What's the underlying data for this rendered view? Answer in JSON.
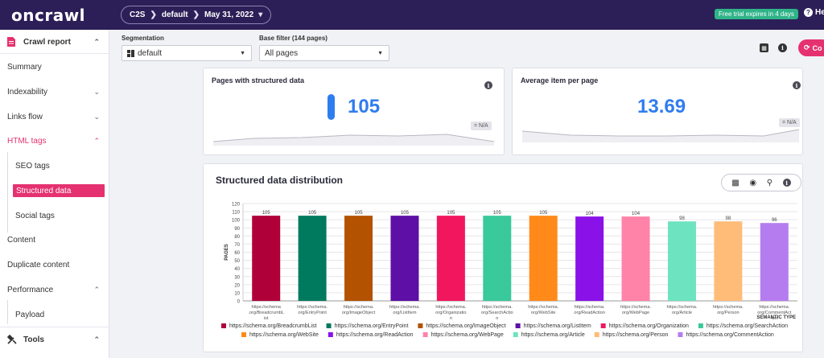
{
  "header": {
    "logo": "oncrawl",
    "breadcrumb": {
      "project": "C2S",
      "segment": "default",
      "date": "May 31, 2022"
    },
    "trial_badge": "Free trial expires in 4 days",
    "help_label": "Hel"
  },
  "sidebar": {
    "crawl_report": "Crawl report",
    "items": [
      "Summary",
      "Indexability",
      "Links flow",
      "HTML tags"
    ],
    "html_tags_sub": [
      "SEO tags",
      "Structured data",
      "Social tags"
    ],
    "more_items": [
      "Content",
      "Duplicate content",
      "Performance"
    ],
    "performance_sub": [
      "Payload"
    ],
    "tools": "Tools"
  },
  "filters": {
    "segmentation_label": "Segmentation",
    "segmentation_value": "default",
    "base_filter_label": "Base filter (144 pages)",
    "base_filter_value": "All pages",
    "co_button": "Co"
  },
  "cards": {
    "pages_structured": {
      "title": "Pages with structured data",
      "value": "105",
      "delta": "= N/A"
    },
    "avg_item": {
      "title": "Average item per page",
      "value": "13.69",
      "delta": "= N/A"
    }
  },
  "distribution": {
    "title": "Structured data distribution"
  },
  "chart_data": {
    "type": "bar",
    "ylabel": "PAGES",
    "xlabel": "SEMANTIC TYPE",
    "ylim": [
      0,
      120
    ],
    "yticks": [
      0,
      10,
      20,
      30,
      40,
      50,
      60,
      70,
      80,
      90,
      100,
      110,
      120
    ],
    "categories": [
      "https://schema.org/BreadcrumbList",
      "https://schema.org/EntryPoint",
      "https://schema.org/ImageObject",
      "https://schema.org/ListItem",
      "https://schema.org/Organization",
      "https://schema.org/SearchAction",
      "https://schema.org/WebSite",
      "https://schema.org/ReadAction",
      "https://schema.org/WebPage",
      "https://schema.org/Article",
      "https://schema.org/Person",
      "https://schema.org/CommentAction"
    ],
    "tick_labels": [
      [
        "https://schema",
        ".org/BreadcrumbL",
        "ist"
      ],
      [
        "https://schema.",
        "org/EntryPoint"
      ],
      [
        "https://schema.",
        "org/ImageObject"
      ],
      [
        "https://schema.",
        "org/ListItem"
      ],
      [
        "https://schema.",
        "org/Organizatio",
        "n"
      ],
      [
        "https://schema.",
        "org/SearchActio",
        "n"
      ],
      [
        "https://schema.",
        "org/WebSite"
      ],
      [
        "https://schema.",
        "org/ReadAction"
      ],
      [
        "https://schema.",
        "org/WebPage"
      ],
      [
        "https://schema.",
        "org/Article"
      ],
      [
        "https://schema.",
        "org/Person"
      ],
      [
        "https://schema.",
        "org/CommentAct",
        "ion"
      ]
    ],
    "values": [
      105,
      105,
      105,
      105,
      105,
      105,
      105,
      104,
      104,
      98,
      98,
      96
    ],
    "colors": [
      "#b0003a",
      "#007a5e",
      "#b35200",
      "#5d0fa6",
      "#f0175f",
      "#3ac99b",
      "#ff8a1a",
      "#8a12e8",
      "#ff82a9",
      "#6de3bf",
      "#ffbb78",
      "#b57cf0"
    ],
    "grid": true,
    "legend": "bottom"
  }
}
